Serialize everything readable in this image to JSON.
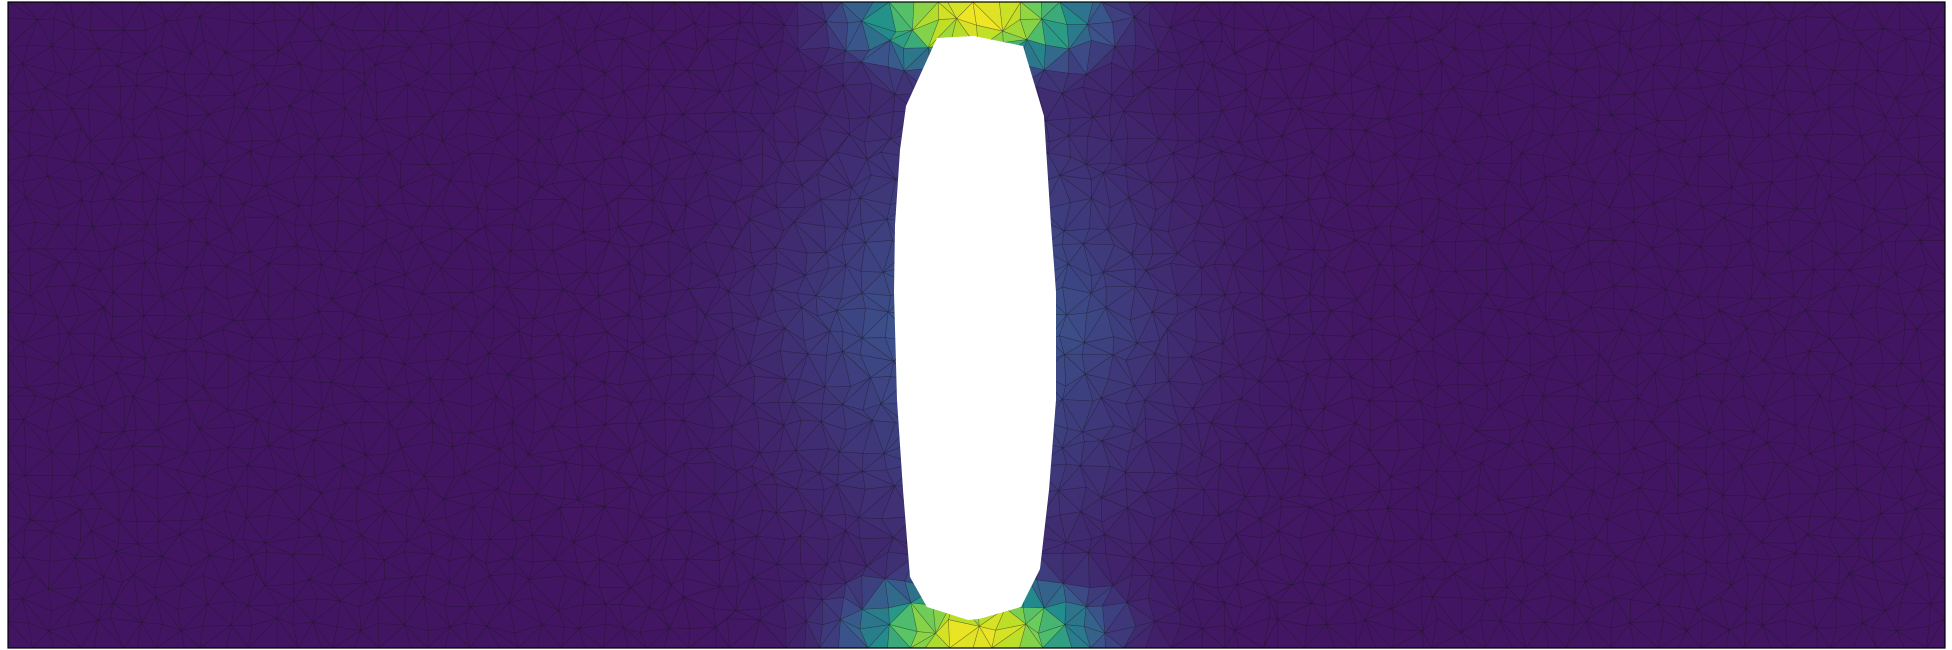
{
  "field": {
    "colormap": [
      "#440154",
      "#3b528b",
      "#21918c",
      "#5ec962",
      "#bddf26",
      "#fde725"
    ],
    "mesh_line_color": "#1a1a1a",
    "hole_color": "#ffffff",
    "background": "#ffffff"
  }
}
